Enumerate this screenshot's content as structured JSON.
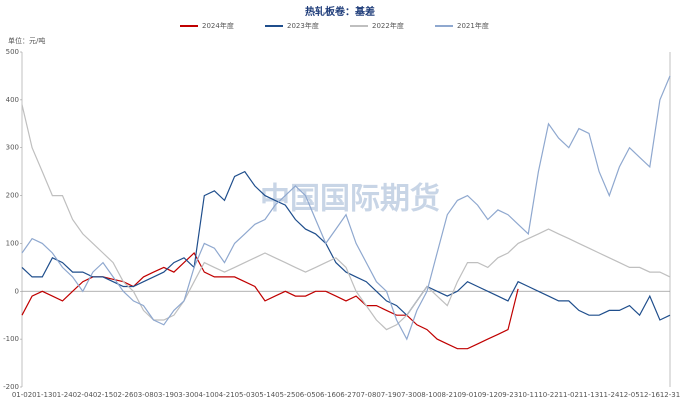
{
  "chart_data": {
    "type": "line",
    "title": "热轧板卷：基差",
    "y_label": "单位：元/吨",
    "watermark": "中国国际期货",
    "categories": [
      "01-02",
      null,
      "01-13",
      null,
      "01-24",
      null,
      "02-04",
      null,
      "02-15",
      null,
      "02-26",
      null,
      "03-08",
      null,
      "03-19",
      null,
      "03-30",
      null,
      "04-10",
      null,
      "04-21",
      null,
      "05-03",
      null,
      "05-14",
      null,
      "05-25",
      null,
      "06-05",
      null,
      "06-16",
      null,
      "06-27",
      null,
      "07-08",
      null,
      "07-19",
      null,
      "07-30",
      null,
      "08-10",
      null,
      "08-21",
      null,
      "09-01",
      null,
      "09-12",
      null,
      "09-23",
      null,
      "10-11",
      null,
      "10-22",
      null,
      "11-02",
      null,
      "11-13",
      null,
      "11-24",
      null,
      "12-05",
      null,
      "12-16",
      null,
      "12-31"
    ],
    "series": [
      {
        "name": "2024年度",
        "color": "#c00000",
        "values": [
          -50,
          -10,
          0,
          -10,
          -20,
          0,
          20,
          30,
          30,
          25,
          20,
          10,
          30,
          40,
          50,
          40,
          60,
          80,
          40,
          30,
          30,
          30,
          20,
          10,
          -20,
          -10,
          0,
          -10,
          -10,
          0,
          0,
          -10,
          -20,
          -10,
          -30,
          -30,
          -40,
          -50,
          -50,
          -70,
          -80,
          -100,
          -110,
          -120,
          -120,
          -110,
          -100,
          -90,
          -80,
          5,
          null,
          null,
          null,
          null,
          null,
          null,
          null,
          null,
          null,
          null,
          null,
          null,
          null,
          null,
          null
        ]
      },
      {
        "name": "2023年度",
        "color": "#1f4e8c",
        "values": [
          50,
          30,
          30,
          70,
          60,
          40,
          40,
          30,
          30,
          20,
          10,
          10,
          20,
          30,
          40,
          60,
          70,
          50,
          200,
          210,
          190,
          240,
          250,
          220,
          200,
          190,
          180,
          150,
          130,
          120,
          100,
          60,
          40,
          30,
          20,
          0,
          -20,
          -30,
          -50,
          -20,
          10,
          0,
          -10,
          0,
          20,
          10,
          0,
          -10,
          -20,
          20,
          10,
          0,
          -10,
          -20,
          -20,
          -40,
          -50,
          -50,
          -40,
          -40,
          -30,
          -50,
          -10,
          -60,
          -50
        ]
      },
      {
        "name": "2022年度",
        "color": "#bfbfbf",
        "values": [
          390,
          300,
          250,
          200,
          200,
          150,
          120,
          100,
          80,
          60,
          20,
          0,
          -40,
          -60,
          -60,
          -50,
          -20,
          20,
          60,
          50,
          40,
          50,
          60,
          70,
          80,
          70,
          60,
          50,
          40,
          50,
          60,
          70,
          50,
          0,
          -30,
          -60,
          -80,
          -70,
          -50,
          -20,
          10,
          -10,
          -30,
          20,
          60,
          60,
          50,
          70,
          80,
          100,
          110,
          120,
          130,
          120,
          110,
          100,
          90,
          80,
          70,
          60,
          50,
          50,
          40,
          40,
          30
        ]
      },
      {
        "name": "2021年度",
        "color": "#8fa8cf",
        "values": [
          80,
          110,
          100,
          80,
          50,
          30,
          0,
          40,
          60,
          30,
          0,
          -20,
          -30,
          -60,
          -70,
          -40,
          -20,
          50,
          100,
          90,
          60,
          100,
          120,
          140,
          150,
          180,
          200,
          220,
          200,
          150,
          100,
          130,
          160,
          100,
          60,
          20,
          0,
          -60,
          -100,
          -40,
          0,
          80,
          160,
          190,
          200,
          180,
          150,
          170,
          160,
          140,
          120,
          250,
          350,
          320,
          300,
          340,
          330,
          250,
          200,
          260,
          300,
          280,
          260,
          400,
          450
        ]
      }
    ],
    "ylim": [
      -200,
      500
    ],
    "yticks": [
      -200,
      -100,
      0,
      100,
      200,
      300,
      400,
      500
    ],
    "legend": "top"
  }
}
